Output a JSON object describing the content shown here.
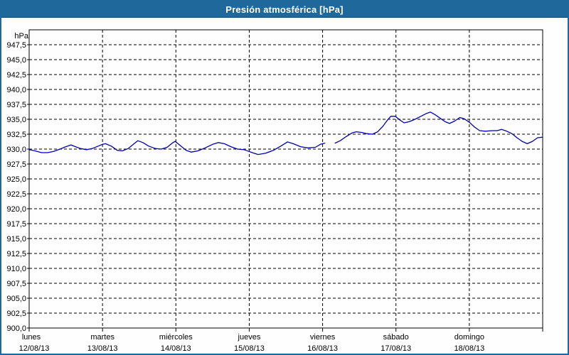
{
  "window": {
    "title": "Presión atmosférica [hPa]"
  },
  "colors": {
    "titlebar": "#1E689C",
    "frame_border": "#1E689C",
    "background": "#FDFEFD",
    "grid": "#000000",
    "axis": "#000000",
    "text": "#000000",
    "line": "#0000B4"
  },
  "chart_data": {
    "type": "line",
    "title": "Presión atmosférica [hPa]",
    "ylabel": "hPa",
    "xlabel": "",
    "grid": true,
    "legend": "none",
    "y_axis": {
      "min": 900,
      "max": 950,
      "tick_step": 2.5
    },
    "y_tick_labels": [
      "947,5",
      "945,0",
      "942,5",
      "940,0",
      "937,5",
      "935,0",
      "932,5",
      "930,0",
      "927,5",
      "925,0",
      "922,5",
      "920,0",
      "917,5",
      "915,0",
      "912,5",
      "910,0",
      "907,5",
      "905,0",
      "902,5",
      "900,0"
    ],
    "x_axis": {
      "unit": "days",
      "range": [
        0,
        7
      ]
    },
    "x_days": [
      {
        "name": "lunes",
        "date": "12/08/13"
      },
      {
        "name": "martes",
        "date": "13/08/13"
      },
      {
        "name": "miércoles",
        "date": "14/08/13"
      },
      {
        "name": "jueves",
        "date": "15/08/13"
      },
      {
        "name": "viernes",
        "date": "16/08/13"
      },
      {
        "name": "sábado",
        "date": "17/08/13"
      },
      {
        "name": "domingo",
        "date": "18/08/13"
      }
    ],
    "series": [
      {
        "name": "Presión atmosférica",
        "unit": "hPa",
        "note": "gap in data early Friday (t≈4.03–4.17 days)",
        "segments": [
          [
            [
              0.0,
              929.9
            ],
            [
              0.08,
              929.7
            ],
            [
              0.17,
              929.4
            ],
            [
              0.25,
              929.4
            ],
            [
              0.33,
              929.6
            ],
            [
              0.42,
              930.0
            ],
            [
              0.5,
              930.4
            ],
            [
              0.57,
              930.7
            ],
            [
              0.63,
              930.4
            ],
            [
              0.7,
              930.1
            ],
            [
              0.78,
              929.9
            ],
            [
              0.86,
              930.1
            ],
            [
              0.94,
              930.5
            ],
            [
              1.0,
              930.8
            ],
            [
              1.04,
              930.9
            ],
            [
              1.12,
              930.5
            ],
            [
              1.2,
              929.8
            ],
            [
              1.27,
              929.7
            ],
            [
              1.35,
              930.1
            ],
            [
              1.43,
              930.9
            ],
            [
              1.48,
              931.4
            ],
            [
              1.55,
              931.1
            ],
            [
              1.63,
              930.5
            ],
            [
              1.72,
              930.1
            ],
            [
              1.8,
              930.0
            ],
            [
              1.88,
              930.3
            ],
            [
              1.95,
              931.0
            ],
            [
              1.99,
              931.3
            ],
            [
              2.06,
              930.6
            ],
            [
              2.14,
              929.8
            ],
            [
              2.21,
              929.5
            ],
            [
              2.3,
              929.7
            ],
            [
              2.4,
              930.2
            ],
            [
              2.5,
              930.8
            ],
            [
              2.58,
              931.1
            ],
            [
              2.66,
              930.9
            ],
            [
              2.75,
              930.4
            ],
            [
              2.84,
              930.0
            ],
            [
              2.93,
              929.9
            ],
            [
              3.02,
              929.5
            ],
            [
              3.12,
              929.1
            ],
            [
              3.22,
              929.3
            ],
            [
              3.33,
              929.8
            ],
            [
              3.43,
              930.5
            ],
            [
              3.52,
              931.2
            ],
            [
              3.6,
              930.9
            ],
            [
              3.7,
              930.4
            ],
            [
              3.8,
              930.2
            ],
            [
              3.9,
              930.3
            ],
            [
              3.97,
              930.8
            ],
            [
              4.03,
              931.0
            ]
          ],
          [
            [
              4.17,
              931.0
            ],
            [
              4.24,
              931.4
            ],
            [
              4.32,
              932.1
            ],
            [
              4.4,
              932.7
            ],
            [
              4.46,
              932.9
            ],
            [
              4.53,
              932.8
            ],
            [
              4.6,
              932.6
            ],
            [
              4.68,
              932.5
            ],
            [
              4.75,
              932.9
            ],
            [
              4.82,
              933.8
            ],
            [
              4.88,
              934.8
            ],
            [
              4.93,
              935.5
            ],
            [
              4.99,
              935.5
            ],
            [
              5.05,
              934.9
            ],
            [
              5.11,
              934.4
            ],
            [
              5.18,
              934.6
            ],
            [
              5.26,
              935.0
            ],
            [
              5.34,
              935.5
            ],
            [
              5.42,
              936.0
            ],
            [
              5.47,
              936.2
            ],
            [
              5.53,
              935.8
            ],
            [
              5.6,
              935.2
            ],
            [
              5.67,
              934.6
            ],
            [
              5.73,
              934.3
            ],
            [
              5.8,
              934.7
            ],
            [
              5.87,
              935.3
            ],
            [
              5.93,
              935.1
            ],
            [
              6.0,
              934.5
            ],
            [
              6.07,
              933.7
            ],
            [
              6.14,
              933.1
            ],
            [
              6.22,
              933.0
            ],
            [
              6.31,
              933.1
            ],
            [
              6.38,
              933.1
            ],
            [
              6.44,
              933.3
            ],
            [
              6.51,
              933.0
            ],
            [
              6.58,
              932.6
            ],
            [
              6.65,
              931.9
            ],
            [
              6.72,
              931.3
            ],
            [
              6.79,
              930.9
            ],
            [
              6.86,
              931.3
            ],
            [
              6.93,
              931.9
            ],
            [
              7.0,
              932.0
            ]
          ]
        ]
      }
    ]
  }
}
